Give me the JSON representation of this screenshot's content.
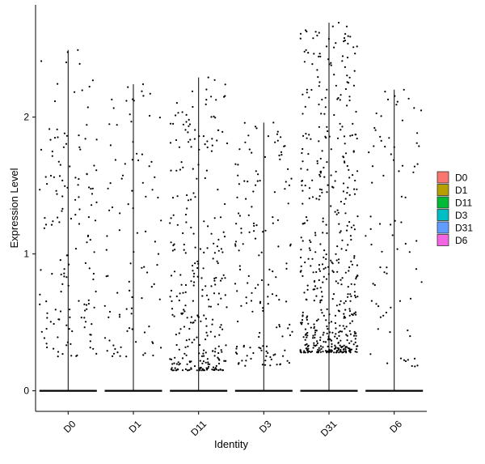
{
  "chart_data": {
    "type": "violin-jitter",
    "title": "",
    "xlabel": "Identity",
    "ylabel": "Expression Level",
    "categories": [
      "D0",
      "D1",
      "D11",
      "D3",
      "D31",
      "D6"
    ],
    "ylim": [
      -0.15,
      2.82
    ],
    "yticks": [
      0,
      1,
      2
    ],
    "grid": false,
    "legend": {
      "placement": "right",
      "entries": [
        {
          "name": "D0",
          "color": "#F8766D"
        },
        {
          "name": "D1",
          "color": "#B79F00"
        },
        {
          "name": "D11",
          "color": "#00BA38"
        },
        {
          "name": "D3",
          "color": "#00BFC4"
        },
        {
          "name": "D31",
          "color": "#619CFF"
        },
        {
          "name": "D6",
          "color": "#F564E3"
        }
      ]
    },
    "series": [
      {
        "name": "D0",
        "max": 2.49,
        "nonzero_points": 150,
        "range": [
          0.25,
          2.49
        ]
      },
      {
        "name": "D1",
        "max": 2.24,
        "nonzero_points": 95,
        "range": [
          0.25,
          2.24
        ]
      },
      {
        "name": "D11",
        "max": 2.29,
        "nonzero_points": 300,
        "range": [
          0.15,
          2.29
        ]
      },
      {
        "name": "D3",
        "max": 1.96,
        "nonzero_points": 150,
        "range": [
          0.18,
          1.96
        ]
      },
      {
        "name": "D31",
        "max": 2.69,
        "nonzero_points": 520,
        "range": [
          0.28,
          2.69
        ]
      },
      {
        "name": "D6",
        "max": 2.2,
        "nonzero_points": 80,
        "range": [
          0.17,
          2.2
        ]
      }
    ]
  }
}
